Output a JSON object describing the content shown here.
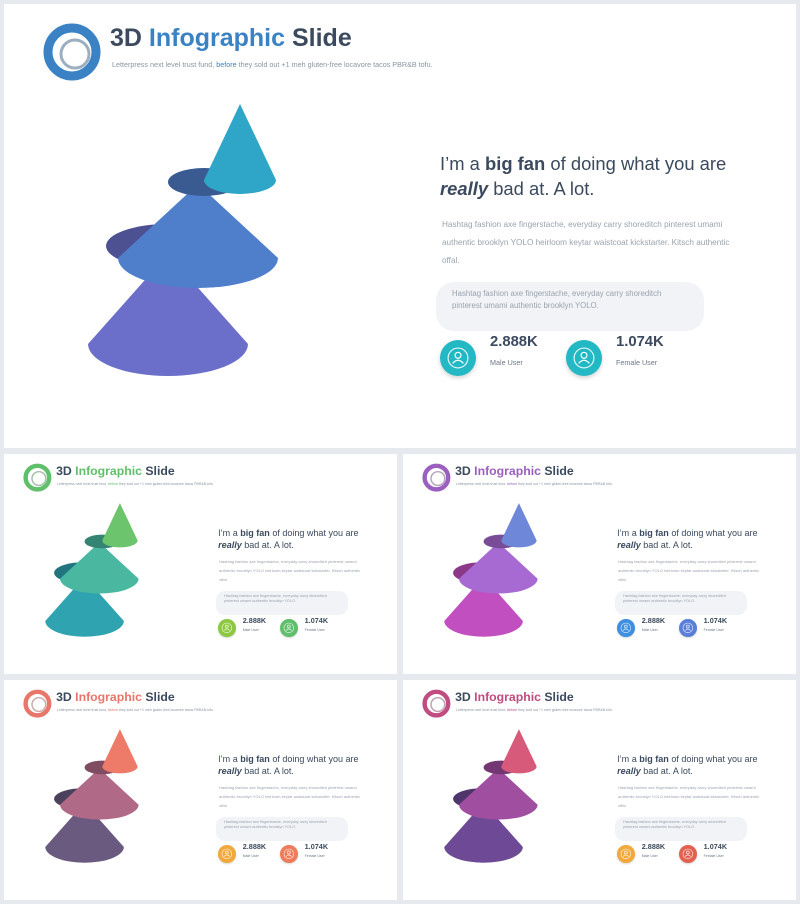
{
  "slide": {
    "title_part1": "3D",
    "title_part2": "Infographic",
    "title_part3": "Slide",
    "subtitle_pre": "Letterpress next level trust fund,",
    "subtitle_accent": "before",
    "subtitle_post": "they sold out +1 meh gluten-free locavore tacos PBR&B tofu.",
    "headline_pre": "I’m a",
    "headline_bold": "big fan",
    "headline_mid": "of doing what you are",
    "headline_italic": "really",
    "headline_post": "bad at. A lot.",
    "body": "Hashtag fashion axe fingerstache, everyday carry shoreditch pinterest umami authentic brooklyn YOLO heirloom keytar waistcoat kickstarter. Kitsch authentic offal.",
    "quote": "Hashtag fashion axe fingerstache, everyday carry shoreditch pinterest umami authentic brooklyn YOLO.",
    "stat1_value": "2.888K",
    "stat1_label": "Male User",
    "stat2_value": "1.074K",
    "stat2_label": "Female User"
  },
  "variants": [
    {
      "name": "blue",
      "accent": "#3a82c4",
      "cone_bottom": "#6b6fc9",
      "cone_mid": "#4f7fcb",
      "cone_top": "#2fa6c8",
      "badge1": "#22b8c4",
      "badge2": "#22b8c4"
    },
    {
      "name": "green",
      "accent": "#5fbf6a",
      "cone_bottom": "#2fa3b0",
      "cone_mid": "#4ab8a0",
      "cone_top": "#6cc46c",
      "badge1": "#8cc940",
      "badge2": "#5fbf6a"
    },
    {
      "name": "purple",
      "accent": "#9b5fc0",
      "cone_bottom": "#c24fc0",
      "cone_mid": "#a76ad2",
      "cone_top": "#6f87d8",
      "badge1": "#3d8fe0",
      "badge2": "#5a7fd8"
    },
    {
      "name": "rose",
      "accent": "#e8766a",
      "cone_bottom": "#6a5a80",
      "cone_mid": "#b06a88",
      "cone_top": "#ee7b6a",
      "badge1": "#f2a93c",
      "badge2": "#ee7b5a"
    },
    {
      "name": "plum",
      "accent": "#c04c80",
      "cone_bottom": "#6e4a96",
      "cone_mid": "#a04ea0",
      "cone_top": "#d85a7a",
      "badge1": "#f2a93c",
      "badge2": "#e46050"
    }
  ]
}
